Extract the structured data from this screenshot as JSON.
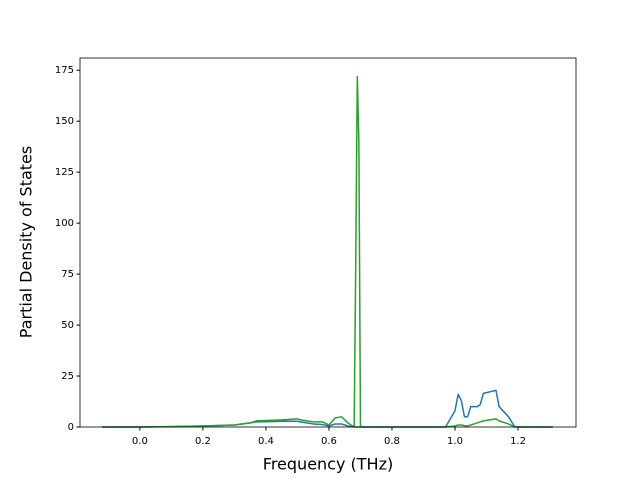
{
  "chart_data": {
    "type": "line",
    "xlabel": "Frequency (THz)",
    "ylabel": "Partial Density of States",
    "x": [
      -0.12,
      0.0,
      0.1,
      0.2,
      0.3,
      0.35,
      0.37,
      0.4,
      0.45,
      0.5,
      0.51,
      0.55,
      0.58,
      0.6,
      0.62,
      0.64,
      0.66,
      0.68,
      0.685,
      0.69,
      0.695,
      0.7,
      0.72,
      0.8,
      0.9,
      0.97,
      1.0,
      1.01,
      1.02,
      1.03,
      1.04,
      1.05,
      1.07,
      1.08,
      1.09,
      1.13,
      1.14,
      1.17,
      1.19,
      1.2,
      1.31
    ],
    "series": [
      {
        "color": "#1f77b4",
        "values": [
          0,
          0,
          0.2,
          0.5,
          1,
          2,
          2.5,
          2.6,
          2.8,
          2.8,
          2.5,
          1.5,
          1.2,
          0.5,
          1.5,
          1.5,
          0.5,
          0,
          0,
          0,
          0,
          0,
          0,
          0,
          0,
          0,
          8,
          16,
          13,
          5,
          5,
          10,
          10,
          11,
          16.5,
          18,
          10,
          5,
          0,
          0,
          0
        ]
      },
      {
        "color": "#2ca02c",
        "values": [
          0,
          0,
          0.2,
          0.5,
          1,
          2,
          3,
          3.2,
          3.5,
          4,
          3.5,
          2.5,
          2.5,
          1,
          4.5,
          5,
          2,
          0,
          80,
          172,
          140,
          0,
          0,
          0,
          0,
          0,
          0.5,
          1,
          1,
          0.7,
          0.5,
          1,
          2,
          2.5,
          3,
          4,
          3,
          1.5,
          0,
          0,
          0
        ]
      }
    ],
    "xlim": [
      -0.19,
      1.384
    ],
    "ylim": [
      0,
      181
    ],
    "xticks": [
      {
        "value": 0,
        "label": "0.0"
      },
      0.2,
      0.4,
      0.6,
      0.8,
      {
        "value": 1,
        "label": "1.0"
      },
      1.2
    ],
    "yticks": [
      0,
      25,
      50,
      75,
      100,
      125,
      150,
      175
    ]
  }
}
